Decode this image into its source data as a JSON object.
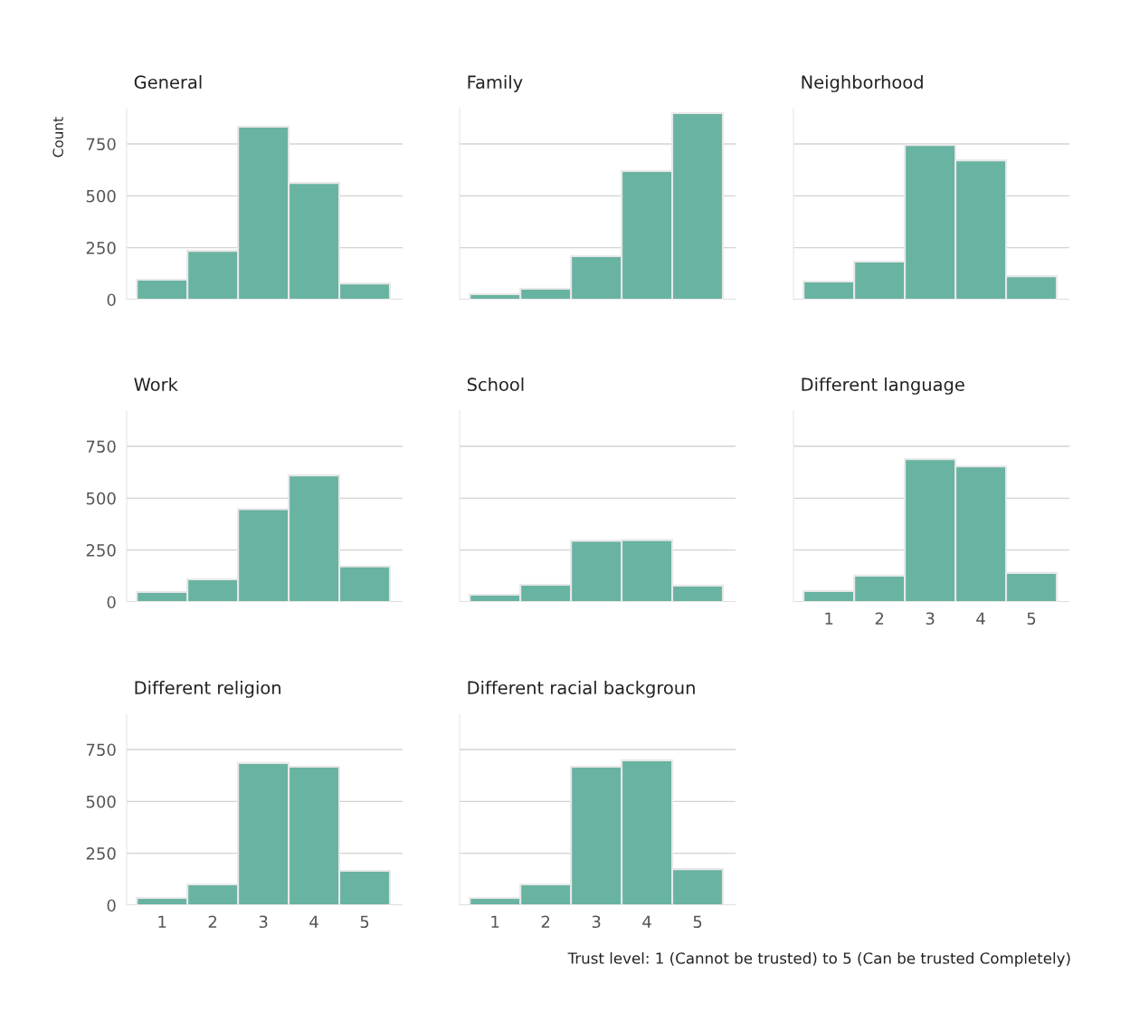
{
  "chart_data": [
    {
      "type": "histogram",
      "title": "General",
      "ylabel": "Count",
      "bins": [
        0.5,
        1.5,
        2.5,
        3.5,
        4.5,
        5.5
      ],
      "values": [
        96,
        235,
        833,
        562,
        78
      ],
      "color": "#69b3a2",
      "xlim": [
        0.3,
        5.75
      ],
      "ylim": [
        0,
        920
      ],
      "xticks": [
        1,
        2,
        3,
        4,
        5
      ],
      "yticks": [
        0,
        250,
        500,
        750
      ],
      "grid": "y",
      "tick_labels": "y"
    },
    {
      "type": "histogram",
      "title": "Family",
      "bins": [
        0.5,
        1.5,
        2.5,
        3.5,
        4.5,
        5.5
      ],
      "values": [
        26,
        52,
        209,
        619,
        898
      ],
      "color": "#69b3a2",
      "xlim": [
        0.3,
        5.75
      ],
      "ylim": [
        0,
        920
      ],
      "xticks": [
        1,
        2,
        3,
        4,
        5
      ],
      "yticks": [
        0,
        250,
        500,
        750
      ],
      "grid": "y",
      "tick_labels": false
    },
    {
      "type": "histogram",
      "title": "Neighborhood",
      "bins": [
        0.5,
        1.5,
        2.5,
        3.5,
        4.5,
        5.5
      ],
      "values": [
        87,
        183,
        745,
        671,
        113
      ],
      "color": "#69b3a2",
      "xlim": [
        0.3,
        5.75
      ],
      "ylim": [
        0,
        920
      ],
      "xticks": [
        1,
        2,
        3,
        4,
        5
      ],
      "yticks": [
        0,
        250,
        500,
        750
      ],
      "grid": "y",
      "tick_labels": false
    },
    {
      "type": "histogram",
      "title": "Work",
      "bins": [
        0.5,
        1.5,
        2.5,
        3.5,
        4.5,
        5.5
      ],
      "values": [
        48,
        109,
        447,
        610,
        171
      ],
      "color": "#69b3a2",
      "xlim": [
        0.3,
        5.75
      ],
      "ylim": [
        0,
        920
      ],
      "xticks": [
        1,
        2,
        3,
        4,
        5
      ],
      "yticks": [
        0,
        250,
        500,
        750
      ],
      "grid": "y",
      "tick_labels": "y"
    },
    {
      "type": "histogram",
      "title": "School",
      "bins": [
        0.5,
        1.5,
        2.5,
        3.5,
        4.5,
        5.5
      ],
      "values": [
        35,
        83,
        294,
        298,
        79
      ],
      "color": "#69b3a2",
      "xlim": [
        0.3,
        5.75
      ],
      "ylim": [
        0,
        920
      ],
      "xticks": [
        1,
        2,
        3,
        4,
        5
      ],
      "yticks": [
        0,
        250,
        500,
        750
      ],
      "grid": "y",
      "tick_labels": false
    },
    {
      "type": "histogram",
      "title": "Different language",
      "bins": [
        0.5,
        1.5,
        2.5,
        3.5,
        4.5,
        5.5
      ],
      "values": [
        52,
        127,
        688,
        653,
        140
      ],
      "color": "#69b3a2",
      "xlim": [
        0.3,
        5.75
      ],
      "ylim": [
        0,
        920
      ],
      "xticks": [
        1,
        2,
        3,
        4,
        5
      ],
      "yticks": [
        0,
        250,
        500,
        750
      ],
      "grid": "y",
      "tick_labels": "x"
    },
    {
      "type": "histogram",
      "title": "Different religion",
      "bins": [
        0.5,
        1.5,
        2.5,
        3.5,
        4.5,
        5.5
      ],
      "values": [
        35,
        100,
        685,
        667,
        166
      ],
      "color": "#69b3a2",
      "xlim": [
        0.3,
        5.75
      ],
      "ylim": [
        0,
        920
      ],
      "xticks": [
        1,
        2,
        3,
        4,
        5
      ],
      "yticks": [
        0,
        250,
        500,
        750
      ],
      "grid": "y"
    },
    {
      "type": "histogram",
      "title": "Different racial backgroun",
      "xlabel": "Trust level: 1 (Cannot be trusted) to 5 (Can be trusted Completely)",
      "bins": [
        0.5,
        1.5,
        2.5,
        3.5,
        4.5,
        5.5
      ],
      "values": [
        35,
        100,
        667,
        698,
        174
      ],
      "color": "#69b3a2",
      "xlim": [
        0.3,
        5.75
      ],
      "ylim": [
        0,
        920
      ],
      "xticks": [
        1,
        2,
        3,
        4,
        5
      ],
      "yticks": [
        0,
        250,
        500,
        750
      ],
      "grid": "y",
      "tick_labels": "x"
    }
  ]
}
